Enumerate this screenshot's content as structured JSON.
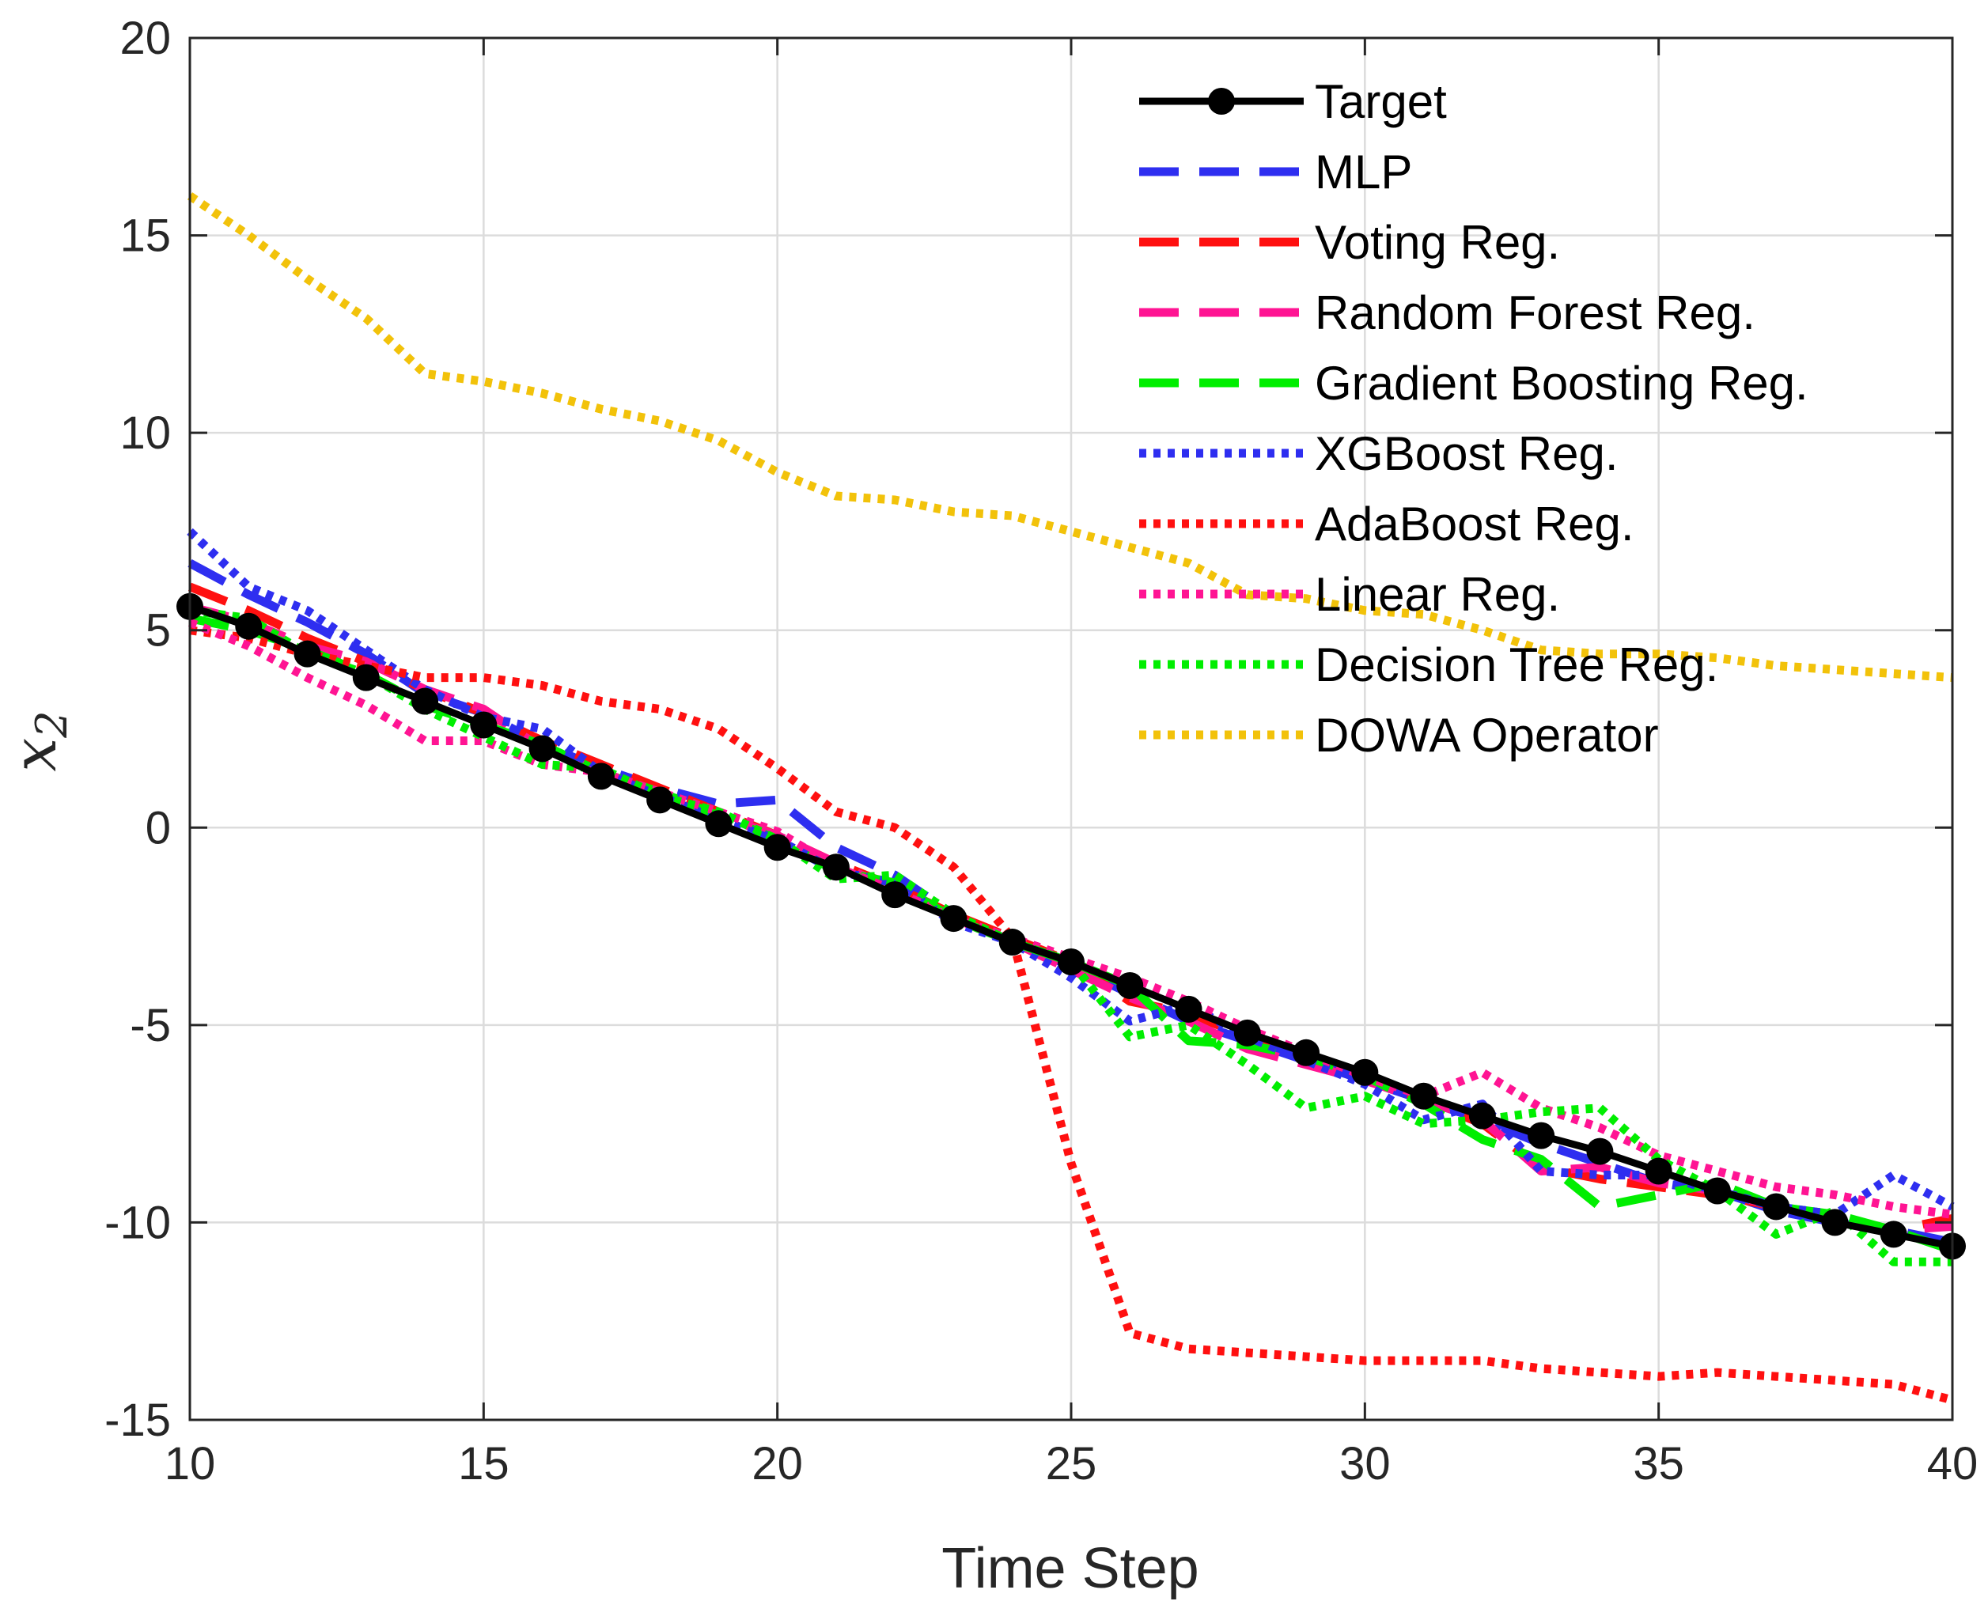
{
  "chart_data": {
    "type": "line",
    "xlabel": "Time Step",
    "ylabel": "x",
    "ylabel_subscript": "2",
    "xlim": [
      10,
      40
    ],
    "ylim": [
      -15,
      20
    ],
    "xticks": [
      10,
      15,
      20,
      25,
      30,
      35,
      40
    ],
    "yticks": [
      -15,
      -10,
      -5,
      0,
      5,
      10,
      15,
      20
    ],
    "xtick_labels": [
      "10",
      "15",
      "20",
      "25",
      "30",
      "35",
      "40"
    ],
    "ytick_labels": [
      "-15",
      "-10",
      "-5",
      "0",
      "5",
      "10",
      "15",
      "20"
    ],
    "grid": true,
    "legend_position": "top-right",
    "x": [
      10,
      11,
      12,
      13,
      14,
      15,
      16,
      17,
      18,
      19,
      20,
      21,
      22,
      23,
      24,
      25,
      26,
      27,
      28,
      29,
      30,
      31,
      32,
      33,
      34,
      35,
      36,
      37,
      38,
      39,
      40
    ],
    "series": [
      {
        "name": "Target",
        "color": "#000000",
        "style": "solid-marker",
        "values": [
          5.6,
          5.1,
          4.4,
          3.8,
          3.2,
          2.6,
          2.0,
          1.3,
          0.7,
          0.1,
          -0.5,
          -1.0,
          -1.7,
          -2.3,
          -2.9,
          -3.4,
          -4.0,
          -4.6,
          -5.2,
          -5.7,
          -6.2,
          -6.8,
          -7.3,
          -7.8,
          -8.2,
          -8.7,
          -9.2,
          -9.6,
          -10.0,
          -10.3,
          -10.6
        ]
      },
      {
        "name": "MLP",
        "color": "#2e2ef0",
        "style": "dashed",
        "values": [
          6.7,
          5.9,
          5.2,
          4.4,
          3.4,
          2.9,
          2.1,
          1.5,
          1.0,
          0.6,
          0.7,
          -0.5,
          -1.2,
          -2.2,
          -2.9,
          -3.5,
          -4.2,
          -4.9,
          -5.4,
          -5.9,
          -6.4,
          -6.9,
          -7.4,
          -8.0,
          -8.5,
          -9.0,
          -9.2,
          -9.7,
          -10.0,
          -10.2,
          -10.5
        ]
      },
      {
        "name": "Voting Reg.",
        "color": "#ff1010",
        "style": "dashed",
        "values": [
          6.1,
          5.5,
          4.8,
          4.2,
          3.5,
          2.9,
          2.2,
          1.6,
          1.0,
          0.4,
          -0.2,
          -0.9,
          -1.5,
          -2.2,
          -2.8,
          -3.4,
          -4.4,
          -4.7,
          -5.3,
          -5.8,
          -6.3,
          -6.9,
          -7.5,
          -8.6,
          -8.9,
          -9.1,
          -9.3,
          -9.6,
          -9.9,
          -10.2,
          -9.9
        ]
      },
      {
        "name": "Random Forest Reg.",
        "color": "#ff1493",
        "style": "dashed",
        "values": [
          5.6,
          5.2,
          4.6,
          4.2,
          3.5,
          3.0,
          2.0,
          1.4,
          0.8,
          0.3,
          -0.2,
          -0.9,
          -1.6,
          -2.3,
          -2.9,
          -3.6,
          -4.3,
          -4.9,
          -5.6,
          -6.0,
          -6.4,
          -6.9,
          -7.4,
          -8.7,
          -8.6,
          -9.0,
          -9.2,
          -9.6,
          -9.9,
          -10.2,
          -10.1
        ]
      },
      {
        "name": "Gradient Boosting Reg.",
        "color": "#00ee00",
        "style": "dashed",
        "values": [
          5.3,
          5.0,
          4.5,
          3.9,
          3.1,
          2.6,
          2.1,
          1.4,
          0.9,
          0.3,
          -0.3,
          -1.1,
          -1.4,
          -2.3,
          -2.9,
          -3.4,
          -4.0,
          -5.4,
          -5.5,
          -5.8,
          -6.3,
          -7.0,
          -7.9,
          -8.4,
          -9.6,
          -9.3,
          -9.0,
          -9.6,
          -9.8,
          -10.2,
          -10.7
        ]
      },
      {
        "name": "XGBoost Reg.",
        "color": "#2e2ef0",
        "style": "dotted",
        "values": [
          7.5,
          6.1,
          5.5,
          4.5,
          3.5,
          2.8,
          2.5,
          1.4,
          0.8,
          0.2,
          -0.3,
          -1.1,
          -1.4,
          -2.4,
          -2.9,
          -3.8,
          -4.9,
          -4.5,
          -5.3,
          -5.9,
          -6.5,
          -7.4,
          -7.0,
          -8.7,
          -8.8,
          -8.8,
          -9.2,
          -9.6,
          -9.8,
          -8.8,
          -9.6
        ]
      },
      {
        "name": "AdaBoost Reg.",
        "color": "#ff1010",
        "style": "dotted",
        "values": [
          5.0,
          4.8,
          4.4,
          4.1,
          3.8,
          3.8,
          3.6,
          3.2,
          3.0,
          2.5,
          1.5,
          0.4,
          0.0,
          -1.0,
          -2.8,
          -8.5,
          -12.8,
          -13.2,
          -13.3,
          -13.4,
          -13.5,
          -13.5,
          -13.5,
          -13.7,
          -13.8,
          -13.9,
          -13.8,
          -13.9,
          -14.0,
          -14.1,
          -14.5
        ]
      },
      {
        "name": "Linear Reg.",
        "color": "#ff1493",
        "style": "dotted",
        "values": [
          5.2,
          4.6,
          3.8,
          3.1,
          2.2,
          2.2,
          1.6,
          1.4,
          0.9,
          0.4,
          -0.1,
          -1.0,
          -1.6,
          -2.3,
          -2.8,
          -3.3,
          -3.8,
          -4.4,
          -5.1,
          -5.7,
          -6.3,
          -6.8,
          -6.2,
          -7.1,
          -7.6,
          -8.3,
          -8.7,
          -9.1,
          -9.3,
          -9.6,
          -9.8
        ]
      },
      {
        "name": "Decision Tree Reg.",
        "color": "#00ee00",
        "style": "dotted",
        "values": [
          5.5,
          5.3,
          4.4,
          3.9,
          3.0,
          2.3,
          1.6,
          1.5,
          0.8,
          0.4,
          -0.3,
          -1.3,
          -1.2,
          -2.2,
          -2.9,
          -3.4,
          -5.3,
          -5.0,
          -6.0,
          -7.1,
          -6.8,
          -7.5,
          -7.4,
          -7.2,
          -7.1,
          -8.4,
          -9.2,
          -10.3,
          -9.7,
          -11.0,
          -11.0
        ]
      },
      {
        "name": "DOWA Operator",
        "color": "#f2c20a",
        "style": "dotted",
        "values": [
          16.0,
          15.0,
          13.9,
          12.9,
          11.5,
          11.3,
          11.0,
          10.6,
          10.3,
          9.8,
          9.0,
          8.4,
          8.3,
          8.0,
          7.9,
          7.5,
          7.1,
          6.7,
          5.9,
          5.8,
          5.5,
          5.4,
          5.0,
          4.5,
          4.4,
          4.4,
          4.3,
          4.1,
          4.0,
          3.9,
          3.8
        ]
      }
    ]
  }
}
